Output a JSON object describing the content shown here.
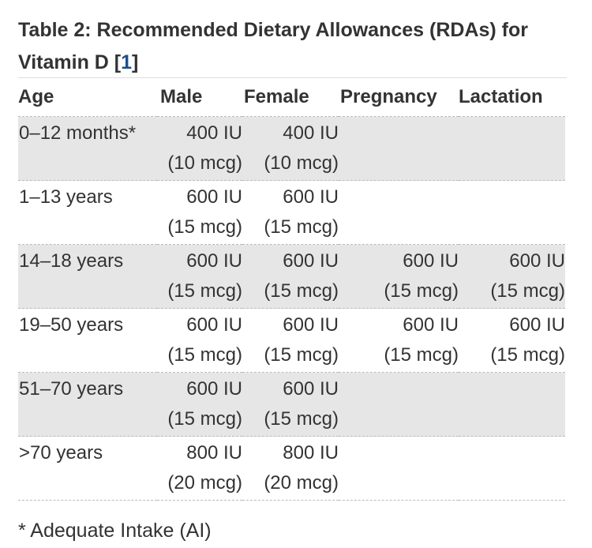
{
  "caption": {
    "text": "Table 2: Recommended Dietary Allowances (RDAs) for Vitamin D [",
    "ref": "1",
    "close": "]"
  },
  "headers": {
    "age": "Age",
    "male": "Male",
    "female": "Female",
    "pregnancy": "Pregnancy",
    "lactation": "Lactation"
  },
  "rows": [
    {
      "age": "0–12 months*",
      "male": [
        "400 IU",
        "(10 mcg)"
      ],
      "female": [
        "400 IU",
        "(10 mcg)"
      ],
      "pregnancy": [
        "",
        ""
      ],
      "lactation": [
        "",
        ""
      ]
    },
    {
      "age": "1–13 years",
      "male": [
        "600 IU",
        "(15 mcg)"
      ],
      "female": [
        "600 IU",
        "(15 mcg)"
      ],
      "pregnancy": [
        "",
        ""
      ],
      "lactation": [
        "",
        ""
      ]
    },
    {
      "age": "14–18 years",
      "male": [
        "600 IU",
        "(15 mcg)"
      ],
      "female": [
        "600 IU",
        "(15 mcg)"
      ],
      "pregnancy": [
        "600 IU",
        "(15 mcg)"
      ],
      "lactation": [
        "600 IU",
        "(15 mcg)"
      ]
    },
    {
      "age": "19–50 years",
      "male": [
        "600 IU",
        "(15 mcg)"
      ],
      "female": [
        "600 IU",
        "(15 mcg)"
      ],
      "pregnancy": [
        "600 IU",
        "(15 mcg)"
      ],
      "lactation": [
        "600 IU",
        "(15 mcg)"
      ]
    },
    {
      "age": "51–70 years",
      "male": [
        "600 IU",
        "(15 mcg)"
      ],
      "female": [
        "600 IU",
        "(15 mcg)"
      ],
      "pregnancy": [
        "",
        ""
      ],
      "lactation": [
        "",
        ""
      ]
    },
    {
      "age": ">70 years",
      "male": [
        "800 IU",
        "(20 mcg)"
      ],
      "female": [
        "800 IU",
        "(20 mcg)"
      ],
      "pregnancy": [
        "",
        ""
      ],
      "lactation": [
        "",
        ""
      ]
    }
  ],
  "footnote": "* Adequate Intake (AI)",
  "colors": {
    "text": "#333333",
    "link": "#1f4e8c",
    "shaded_row": "#e6e6e6",
    "divider": "#bbbbbb"
  }
}
